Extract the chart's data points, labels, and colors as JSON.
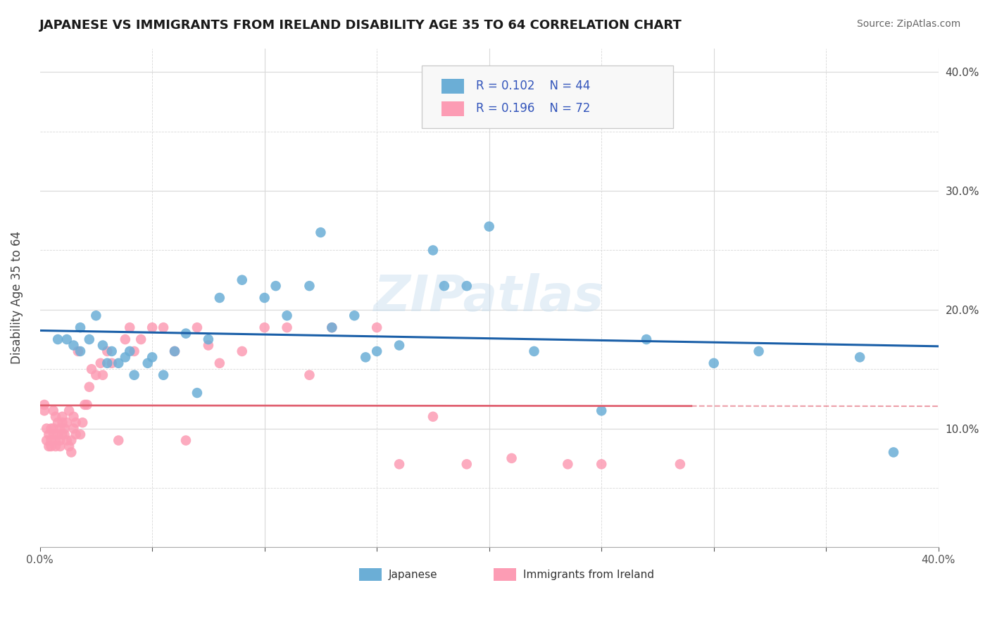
{
  "title": "JAPANESE VS IMMIGRANTS FROM IRELAND DISABILITY AGE 35 TO 64 CORRELATION CHART",
  "source": "Source: ZipAtlas.com",
  "ylabel": "Disability Age 35 to 64",
  "xlim": [
    0.0,
    0.4
  ],
  "ylim": [
    0.0,
    0.42
  ],
  "xtick_positions": [
    0.0,
    0.05,
    0.1,
    0.15,
    0.2,
    0.25,
    0.3,
    0.35,
    0.4
  ],
  "ytick_positions": [
    0.0,
    0.05,
    0.1,
    0.15,
    0.2,
    0.25,
    0.3,
    0.35,
    0.4
  ],
  "legend_r1": "0.102",
  "legend_n1": "44",
  "legend_r2": "0.196",
  "legend_n2": "72",
  "watermark": "ZIPatlas",
  "color_japanese": "#6baed6",
  "color_ireland": "#fc9cb4",
  "color_line_japanese": "#1a5fa8",
  "color_line_ireland": "#e06070",
  "color_grid_solid": "#d8d8d8",
  "color_grid_dashed": "#d8d8d8",
  "japanese_x": [
    0.008,
    0.012,
    0.015,
    0.018,
    0.018,
    0.022,
    0.025,
    0.028,
    0.03,
    0.032,
    0.035,
    0.038,
    0.04,
    0.042,
    0.048,
    0.05,
    0.055,
    0.06,
    0.065,
    0.07,
    0.075,
    0.08,
    0.09,
    0.1,
    0.105,
    0.11,
    0.12,
    0.125,
    0.13,
    0.14,
    0.145,
    0.15,
    0.16,
    0.175,
    0.18,
    0.19,
    0.2,
    0.22,
    0.25,
    0.27,
    0.3,
    0.32,
    0.365,
    0.38
  ],
  "japanese_y": [
    0.175,
    0.175,
    0.17,
    0.165,
    0.185,
    0.175,
    0.195,
    0.17,
    0.155,
    0.165,
    0.155,
    0.16,
    0.165,
    0.145,
    0.155,
    0.16,
    0.145,
    0.165,
    0.18,
    0.13,
    0.175,
    0.21,
    0.225,
    0.21,
    0.22,
    0.195,
    0.22,
    0.265,
    0.185,
    0.195,
    0.16,
    0.165,
    0.17,
    0.25,
    0.22,
    0.22,
    0.27,
    0.165,
    0.115,
    0.175,
    0.155,
    0.165,
    0.16,
    0.08
  ],
  "ireland_x": [
    0.002,
    0.002,
    0.003,
    0.003,
    0.004,
    0.004,
    0.005,
    0.005,
    0.005,
    0.006,
    0.006,
    0.006,
    0.007,
    0.007,
    0.007,
    0.008,
    0.008,
    0.009,
    0.009,
    0.009,
    0.01,
    0.01,
    0.01,
    0.011,
    0.011,
    0.012,
    0.012,
    0.013,
    0.013,
    0.014,
    0.014,
    0.015,
    0.015,
    0.016,
    0.016,
    0.017,
    0.018,
    0.019,
    0.02,
    0.021,
    0.022,
    0.023,
    0.025,
    0.027,
    0.028,
    0.03,
    0.032,
    0.035,
    0.038,
    0.04,
    0.042,
    0.045,
    0.05,
    0.055,
    0.06,
    0.065,
    0.07,
    0.075,
    0.08,
    0.09,
    0.1,
    0.11,
    0.12,
    0.13,
    0.15,
    0.16,
    0.175,
    0.19,
    0.21,
    0.235,
    0.25,
    0.285
  ],
  "ireland_y": [
    0.115,
    0.12,
    0.1,
    0.09,
    0.095,
    0.085,
    0.085,
    0.09,
    0.1,
    0.095,
    0.1,
    0.115,
    0.11,
    0.09,
    0.085,
    0.105,
    0.095,
    0.09,
    0.085,
    0.1,
    0.11,
    0.105,
    0.095,
    0.095,
    0.1,
    0.105,
    0.09,
    0.115,
    0.085,
    0.08,
    0.09,
    0.11,
    0.1,
    0.105,
    0.095,
    0.165,
    0.095,
    0.105,
    0.12,
    0.12,
    0.135,
    0.15,
    0.145,
    0.155,
    0.145,
    0.165,
    0.155,
    0.09,
    0.175,
    0.185,
    0.165,
    0.175,
    0.185,
    0.185,
    0.165,
    0.09,
    0.185,
    0.17,
    0.155,
    0.165,
    0.185,
    0.185,
    0.145,
    0.185,
    0.185,
    0.07,
    0.11,
    0.07,
    0.075,
    0.07,
    0.07,
    0.07
  ]
}
